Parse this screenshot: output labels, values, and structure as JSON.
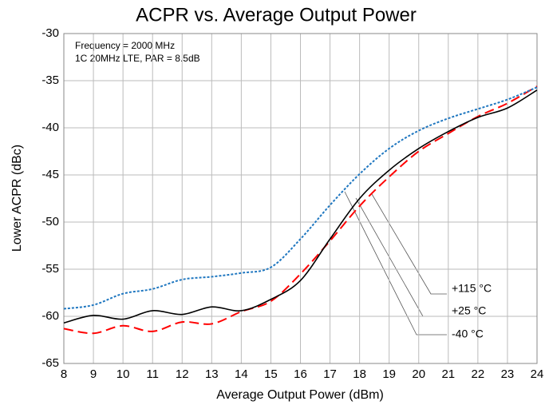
{
  "chart_data": {
    "type": "line",
    "title": "ACPR vs. Average Output Power",
    "xlabel": "Average Output Power (dBm)",
    "ylabel": "Lower ACPR (dBc)",
    "annotations": [
      "Frequency = 2000 MHz",
      "1C 20MHz LTE, PAR = 8.5dB"
    ],
    "x": [
      8,
      9,
      10,
      11,
      12,
      13,
      14,
      15,
      16,
      17,
      18,
      19,
      20,
      21,
      22,
      23,
      24
    ],
    "series": [
      {
        "name": "+115 °C",
        "color": "#ff0000",
        "dash": "12,6",
        "values": [
          -61.3,
          -61.8,
          -61.0,
          -61.6,
          -60.6,
          -60.8,
          -59.5,
          -58.4,
          -55.5,
          -52.0,
          -48.3,
          -45.2,
          -42.5,
          -40.6,
          -38.8,
          -37.4,
          -35.6
        ]
      },
      {
        "name": "+25 °C",
        "color": "#000000",
        "dash": "none",
        "values": [
          -60.7,
          -59.9,
          -60.3,
          -59.4,
          -59.8,
          -59.0,
          -59.4,
          -58.2,
          -56.2,
          -51.8,
          -47.5,
          -44.5,
          -42.2,
          -40.4,
          -38.9,
          -37.9,
          -36.0
        ]
      },
      {
        "name": "-40 °C",
        "color": "#1f77c0",
        "dash": "3,2",
        "values": [
          -59.2,
          -58.8,
          -57.6,
          -57.1,
          -56.1,
          -55.8,
          -55.4,
          -54.8,
          -51.8,
          -48.2,
          -44.9,
          -42.2,
          -40.3,
          -39.0,
          -38.0,
          -37.0,
          -35.7
        ]
      }
    ],
    "xlim": [
      8,
      24
    ],
    "xticks": [
      8,
      9,
      10,
      11,
      12,
      13,
      14,
      15,
      16,
      17,
      18,
      19,
      20,
      21,
      22,
      23,
      24
    ],
    "ylim": [
      -65,
      -30
    ],
    "yticks": [
      -65,
      -60,
      -55,
      -50,
      -45,
      -40,
      -35,
      -30
    ],
    "grid": true
  }
}
